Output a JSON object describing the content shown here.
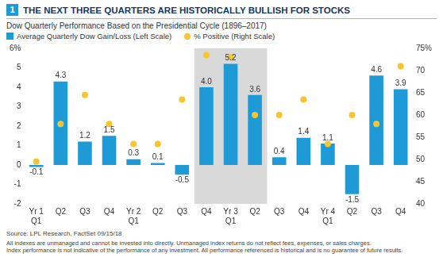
{
  "chart_data": {
    "type": "bar",
    "figure_number": "1",
    "title": "THE NEXT THREE QUARTERS ARE HISTORICALLY BULLISH FOR STOCKS",
    "subtitle": "Dow Quarterly Performance Based on the Presidential Cycle (1896–2017)",
    "categories": [
      "Yr 1 Q1",
      "Q2",
      "Q3",
      "Q4",
      "Yr 2 Q1",
      "Q2",
      "Q3",
      "Q4",
      "Yr 3 Q1",
      "Q2",
      "Q3",
      "Q4",
      "Yr 4 Q1",
      "Q2",
      "Q3",
      "Q4"
    ],
    "series": [
      {
        "name": "Average Quarterly Dow Gain/Loss (Left Scale)",
        "type": "bar",
        "color": "#1e9bd7",
        "values": [
          -0.1,
          4.3,
          1.2,
          1.5,
          0.3,
          0.1,
          -0.5,
          4.0,
          5.2,
          3.6,
          0.4,
          1.4,
          1.1,
          -1.5,
          4.6,
          3.9
        ],
        "value_labels": [
          "-0.1",
          "4.3",
          "1.2",
          "1.5",
          "0.3",
          "0.1",
          "-0.5",
          "4.0",
          "5.2",
          "3.6",
          "0.4",
          "1.4",
          "1.1",
          "-1.5",
          "4.6",
          "3.9"
        ]
      },
      {
        "name": "% Positive (Right Scale)",
        "type": "scatter",
        "color": "#f5c533",
        "marker": "circle",
        "axis": "y2",
        "values": [
          49.5,
          58,
          64.5,
          58,
          53.5,
          53.5,
          63.5,
          73.5,
          73,
          60,
          60,
          63.5,
          53.5,
          60,
          58,
          71
        ]
      }
    ],
    "data_labels": true,
    "ylim": [
      -2,
      6
    ],
    "yticks": [
      -2,
      -1,
      0,
      1,
      2,
      3,
      4,
      5,
      {
        "value": 6,
        "label": "6%"
      }
    ],
    "y2lim": [
      40,
      75
    ],
    "y2ticks": [
      40,
      45,
      50,
      55,
      60,
      65,
      70,
      {
        "value": 75,
        "label": "75%"
      }
    ],
    "grid": false,
    "legend": "top",
    "highlight": [
      7,
      9
    ],
    "source": "Source: LPL Research, FactSet 09/15/18",
    "notes": [
      "All indexes are unmanaged and cannot be invested into directly. Unmanaged index returns do not reflect fees, expenses, or sales charges.",
      "Index performance is not indicative of the performance of any investment. All performance referenced is historical and is no guarantee of future results."
    ]
  }
}
